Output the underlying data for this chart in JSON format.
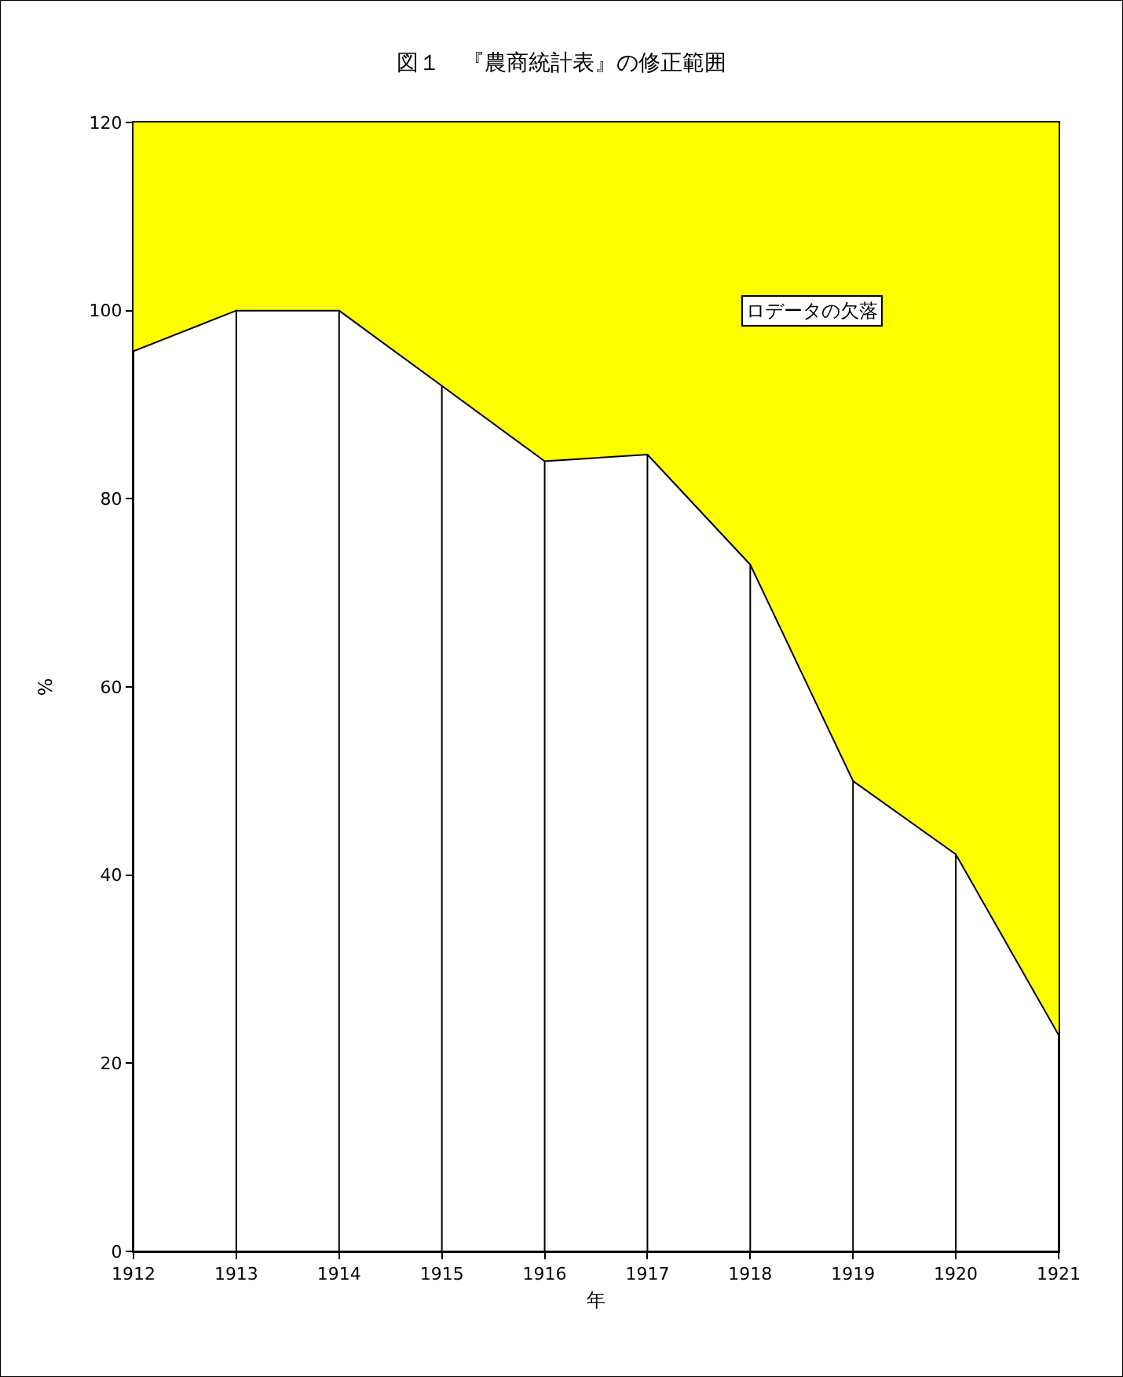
{
  "chart_data": {
    "type": "area",
    "title": "図１　『農商統計表』の修正範囲",
    "xlabel": "年",
    "ylabel": "%",
    "x": [
      1912,
      1913,
      1914,
      1915,
      1916,
      1917,
      1918,
      1919,
      1920,
      1921
    ],
    "series": [
      {
        "color": "#ffffff",
        "values": [
          95.7,
          100,
          100,
          92,
          84,
          84.7,
          73,
          50,
          42.2,
          23
        ]
      }
    ],
    "xlim": [
      1912,
      1921
    ],
    "xticks": [
      1912,
      1913,
      1914,
      1915,
      1916,
      1917,
      1918,
      1919,
      1920,
      1921
    ],
    "ylim": [
      0,
      120
    ],
    "yticks": [
      0,
      20,
      40,
      60,
      80,
      100,
      120
    ],
    "bands": [
      {
        "axis": "y",
        "from": 0,
        "to": 120,
        "color": "#ffff00"
      }
    ],
    "annotations": [
      "ロデータの欠落"
    ]
  }
}
